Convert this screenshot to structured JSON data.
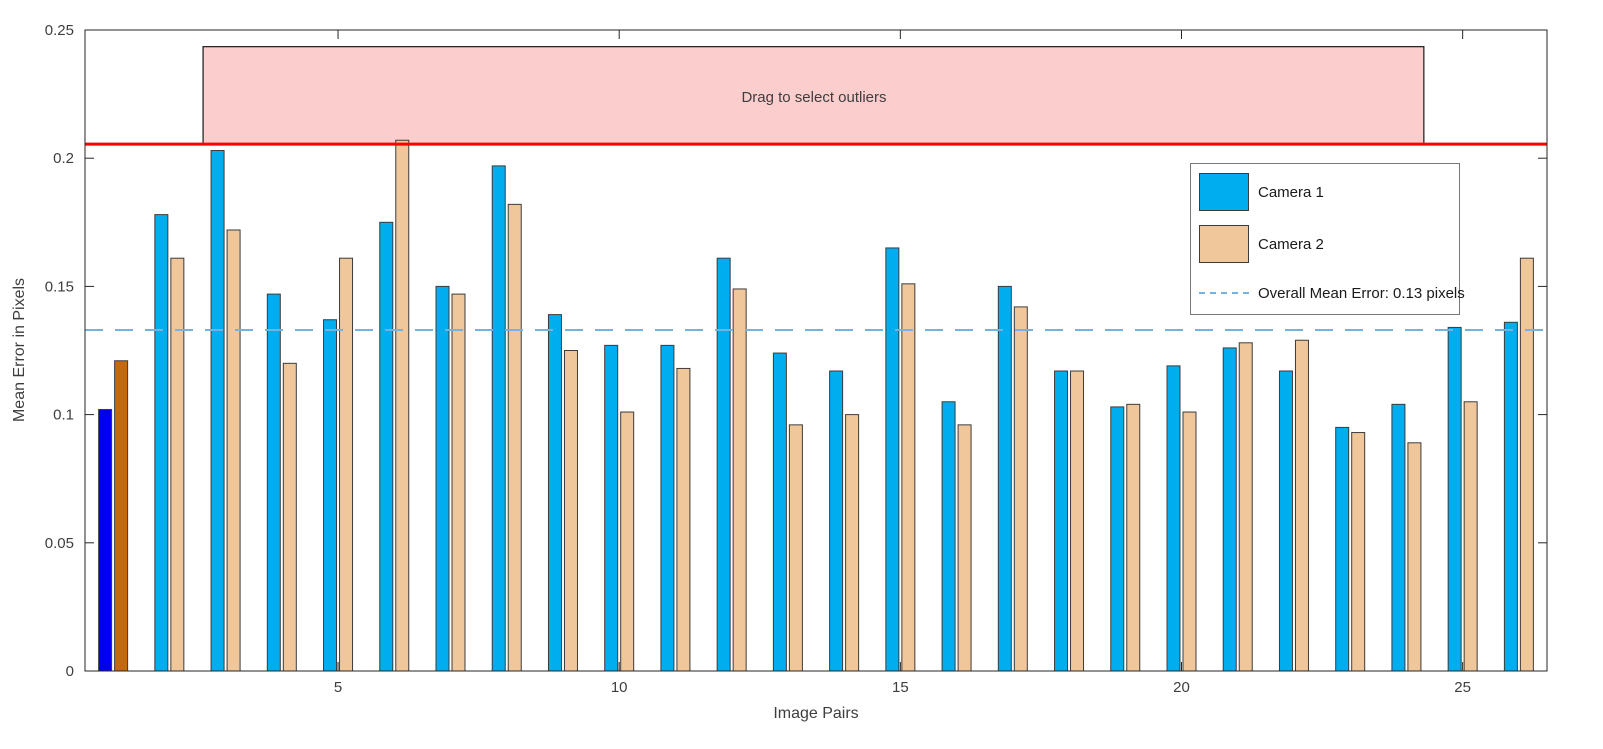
{
  "style": {
    "background": "#FFFFFF",
    "axis_color": "#262626",
    "tick_label_color": "#3E3E3E",
    "bar_edge_color": "#3C3C3C",
    "legend_border_color": "#787878",
    "selection_border_color": "#1A1A1A"
  },
  "chart_data": {
    "type": "bar",
    "title": "",
    "xlabel": "Image Pairs",
    "ylabel": "Mean Error in Pixels",
    "xlim": [
      0.5,
      26.5
    ],
    "ylim": [
      0,
      0.25
    ],
    "x_ticks": [
      5,
      10,
      15,
      20,
      25
    ],
    "y_ticks": [
      0,
      0.05,
      0.1,
      0.15,
      0.2,
      0.25
    ],
    "y_tick_labels": [
      "0",
      "0.05",
      "0.1",
      "0.15",
      "0.2",
      "0.25"
    ],
    "categories": [
      1,
      2,
      3,
      4,
      5,
      6,
      7,
      8,
      9,
      10,
      11,
      12,
      13,
      14,
      15,
      16,
      17,
      18,
      19,
      20,
      21,
      22,
      23,
      24,
      25,
      26
    ],
    "series": [
      {
        "name": "Camera 1",
        "color": "#00AEEF",
        "selected_color": "#0000F0",
        "values": [
          0.102,
          0.178,
          0.203,
          0.147,
          0.137,
          0.175,
          0.15,
          0.197,
          0.139,
          0.127,
          0.127,
          0.161,
          0.124,
          0.117,
          0.165,
          0.105,
          0.15,
          0.117,
          0.103,
          0.119,
          0.126,
          0.117,
          0.095,
          0.104,
          0.134,
          0.136
        ]
      },
      {
        "name": "Camera 2",
        "color": "#F0C79B",
        "selected_color": "#C4690C",
        "values": [
          0.121,
          0.161,
          0.172,
          0.12,
          0.161,
          0.207,
          0.147,
          0.182,
          0.125,
          0.101,
          0.118,
          0.149,
          0.096,
          0.1,
          0.151,
          0.096,
          0.142,
          0.117,
          0.104,
          0.101,
          0.128,
          0.129,
          0.093,
          0.089,
          0.105,
          0.161
        ]
      }
    ],
    "selected_pairs": [
      1
    ],
    "overall_mean_error": {
      "label": "Overall Mean Error: 0.13 pixels",
      "value": 0.133,
      "color": "#74B2E2"
    },
    "outlier_threshold": {
      "value": 0.2055,
      "color": "#FF0000"
    },
    "selection_region": {
      "label": "Drag to select outliers",
      "x1": 2.6,
      "x2": 24.31,
      "y1": 0.2055,
      "y2": 0.2435,
      "fill": "#FCCDCD"
    },
    "legend_position": "upper right",
    "grid": false
  }
}
